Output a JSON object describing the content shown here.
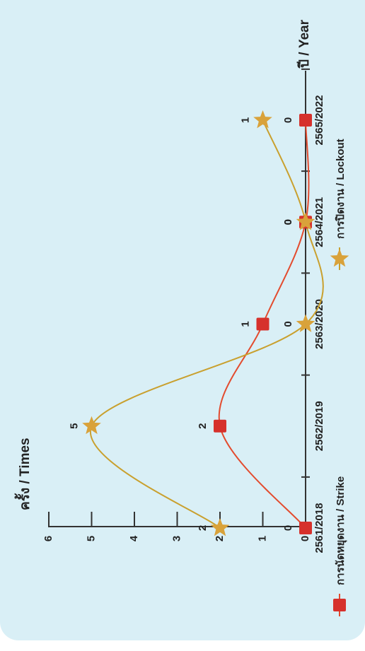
{
  "chart_data": {
    "type": "line",
    "orientation": "rotated-90-ccw",
    "ylabel": "ครั้ง / Times",
    "xlabel": "ปี / Year",
    "categories": [
      "2561/2018",
      "2562/2019",
      "2563/2020",
      "2564/2021",
      "2565/2022"
    ],
    "ylim": [
      0,
      6
    ],
    "yticks": [
      0,
      1,
      2,
      3,
      4,
      5,
      6
    ],
    "series": [
      {
        "name": "การนัดหยุดงาน / Strike",
        "values": [
          0,
          2,
          1,
          0,
          0
        ],
        "color": "#d6312c",
        "marker": "square",
        "line_color": "#e34b2e"
      },
      {
        "name": "การปิดงาน / Lockout",
        "values": [
          2,
          5,
          0,
          0,
          1
        ],
        "color": "#d9a23a",
        "marker": "star",
        "line_color": "#c9a02e"
      }
    ],
    "legend_position": "bottom",
    "grid": false
  }
}
